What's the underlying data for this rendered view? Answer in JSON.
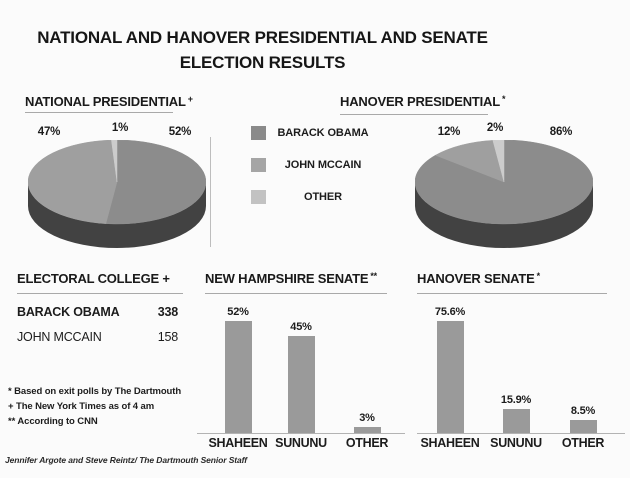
{
  "title": {
    "line1": "NATIONAL AND HANOVER PRESIDENTIAL AND SENATE",
    "line2": "ELECTION RESULTS"
  },
  "section_headers": {
    "national_presidential": {
      "label": "NATIONAL PRESIDENTIAL",
      "marker": "+"
    },
    "hanover_presidential": {
      "label": "HANOVER PRESIDENTIAL",
      "marker": "*"
    },
    "electoral_college": {
      "label": "ELECTORAL COLLEGE +"
    },
    "new_hampshire_senate": {
      "label": "NEW HAMPSHIRE SENATE",
      "marker": "**"
    },
    "hanover_senate": {
      "label": "HANOVER SENATE",
      "marker": "*"
    }
  },
  "legend": {
    "items": [
      {
        "label": "BARACK OBAMA",
        "color": "#8a8a8a"
      },
      {
        "label": "JOHN MCCAIN",
        "color": "#a5a5a5"
      },
      {
        "label": "OTHER",
        "color": "#c2c2c2"
      }
    ]
  },
  "footnotes": {
    "line1": "* Based on exit polls  by The Dartmouth",
    "line2": "+ The New York Times as of 4 am",
    "line3": "** According to CNN"
  },
  "credit": "Jennifer Argote and Steve Reintz/ The Dartmouth Senior Staff",
  "chart_data": [
    {
      "id": "national_presidential",
      "type": "pie",
      "title": "NATIONAL PRESIDENTIAL +",
      "labels": [
        "BARACK OBAMA",
        "JOHN MCCAIN",
        "OTHER"
      ],
      "values": [
        52,
        47,
        1
      ],
      "value_labels": [
        "52%",
        "47%",
        "1%"
      ],
      "unit": "%",
      "colors": [
        "#8c8c8c",
        "#9f9f9f",
        "#cccccc"
      ],
      "rim_color": "#424242",
      "style": "3d",
      "start": "12 o'clock, clockwise",
      "legend_position": "right of chart, shared"
    },
    {
      "id": "hanover_presidential",
      "type": "pie",
      "title": "HANOVER PRESIDENTIAL *",
      "labels": [
        "BARACK OBAMA",
        "JOHN MCCAIN",
        "OTHER"
      ],
      "values": [
        86,
        12,
        2
      ],
      "value_labels": [
        "86%",
        "12%",
        "2%"
      ],
      "unit": "%",
      "colors": [
        "#8c8c8c",
        "#9f9f9f",
        "#cccccc"
      ],
      "rim_color": "#424242",
      "style": "3d",
      "start": "12 o'clock, clockwise",
      "legend_position": "left of chart, shared"
    },
    {
      "id": "new_hampshire_senate",
      "type": "bar",
      "title": "NEW HAMPSHIRE SENATE **",
      "categories": [
        "SHAHEEN",
        "SUNUNU",
        "OTHER"
      ],
      "values": [
        52,
        45,
        3
      ],
      "value_labels": [
        "52%",
        "45%",
        "3%"
      ],
      "unit": "%",
      "bar_color": "#9a9a9a",
      "grid": "off",
      "axis": "baseline only"
    },
    {
      "id": "hanover_senate",
      "type": "bar",
      "title": "HANOVER SENATE *",
      "categories": [
        "SHAHEEN",
        "SUNUNU",
        "OTHER"
      ],
      "values": [
        75.6,
        15.9,
        8.5
      ],
      "value_labels": [
        "75.6%",
        "15.9%",
        "8.5%"
      ],
      "unit": "%",
      "bar_color": "#9a9a9a",
      "grid": "off",
      "axis": "baseline only"
    },
    {
      "id": "electoral_college",
      "type": "table",
      "title": "ELECTORAL COLLEGE +",
      "rows": [
        {
          "name": "BARACK OBAMA",
          "value": "338"
        },
        {
          "name": "JOHN MCCAIN",
          "value": "158"
        }
      ]
    }
  ]
}
